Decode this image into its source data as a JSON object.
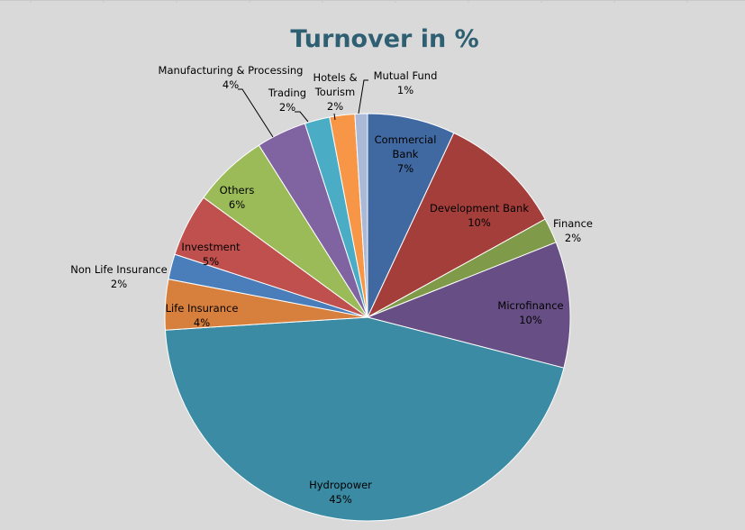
{
  "chart_data": {
    "type": "pie",
    "title": "Turnover in %",
    "start_angle_deg": 0,
    "direction": "clockwise",
    "slices": [
      {
        "label": "Commercial Bank",
        "value": 7,
        "display": "7%",
        "color": "#4169a1"
      },
      {
        "label": "Development Bank",
        "value": 10,
        "display": "10%",
        "color": "#a33e3b"
      },
      {
        "label": "Finance",
        "value": 2,
        "display": "2%",
        "color": "#7f9a48"
      },
      {
        "label": "Microfinance",
        "value": 10,
        "display": "10%",
        "color": "#674f86"
      },
      {
        "label": "Hydropower",
        "value": 45,
        "display": "45%",
        "color": "#3a8ba3"
      },
      {
        "label": "Life Insurance",
        "value": 4,
        "display": "4%",
        "color": "#d7803d"
      },
      {
        "label": "Non Life Insurance",
        "value": 2,
        "display": "2%",
        "color": "#4a7ebb"
      },
      {
        "label": "Investment",
        "value": 5,
        "display": "5%",
        "color": "#c0504d"
      },
      {
        "label": "Others",
        "value": 6,
        "display": "6%",
        "color": "#9bbb59"
      },
      {
        "label": "Manufacturing & Processing",
        "value": 4,
        "display": "4%",
        "color": "#8064a2"
      },
      {
        "label": "Trading",
        "value": 2,
        "display": "2%",
        "color": "#4bacc6"
      },
      {
        "label": "Hotels & Tourism",
        "value": 2,
        "display": "2%",
        "color": "#f79646"
      },
      {
        "label": "Mutual Fund",
        "value": 1,
        "display": "1%",
        "color": "#aab9d7"
      }
    ]
  }
}
